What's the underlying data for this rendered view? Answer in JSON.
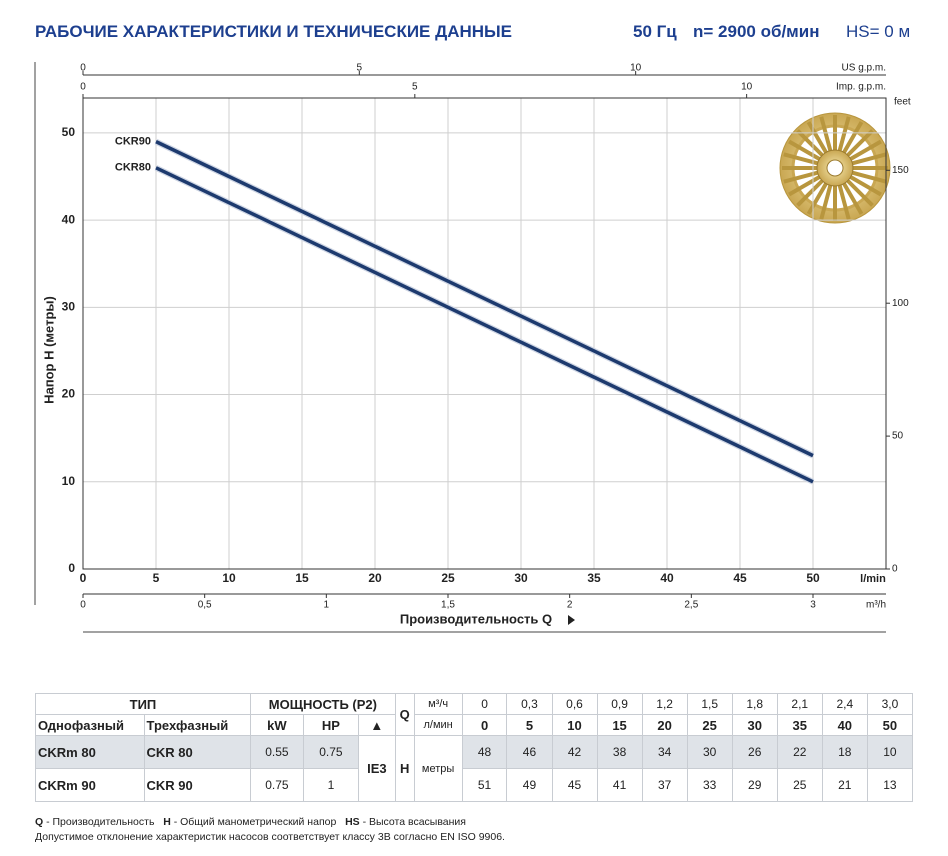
{
  "header": {
    "title": "РАБОЧИЕ ХАРАКТЕРИСТИКИ И ТЕХНИЧЕСКИЕ ДАННЫЕ",
    "frequency": "50 Гц",
    "speed": "n= 2900 об/мин",
    "suction": "HS= 0 м"
  },
  "chart_data": {
    "type": "line",
    "y_label": "Напор H (метры)",
    "x_label": "Производительность Q",
    "x_unit": "l/min",
    "x": [
      5,
      10,
      15,
      20,
      25,
      30,
      35,
      40,
      45,
      50
    ],
    "series": [
      {
        "name": "CKR90",
        "color": "#1d3a6e",
        "values": [
          49,
          45,
          41,
          37,
          33,
          29,
          25,
          21,
          17,
          13
        ]
      },
      {
        "name": "CKR80",
        "color": "#1d3a6e",
        "values": [
          46,
          42,
          38,
          34,
          30,
          26,
          22,
          18,
          14,
          10
        ]
      }
    ],
    "xlim": [
      0,
      55
    ],
    "ylim": [
      0,
      54
    ],
    "xticks": [
      0,
      5,
      10,
      15,
      20,
      25,
      30,
      35,
      40,
      45,
      50
    ],
    "yticks": [
      0,
      10,
      20,
      30,
      40,
      50
    ],
    "grid": true,
    "y2_label": "feet",
    "y2lim": [
      0,
      177.2
    ],
    "y2ticks": [
      0,
      50,
      100,
      150
    ],
    "top_axes": [
      {
        "label": "US g.p.m.",
        "lim": [
          0,
          14.53
        ],
        "ticks": [
          0,
          5,
          10
        ]
      },
      {
        "label": "Imp. g.p.m.",
        "lim": [
          0,
          12.1
        ],
        "ticks": [
          0,
          5,
          10
        ]
      }
    ],
    "bottom_axis2": {
      "label": "m³/h",
      "lim": [
        0,
        3.3
      ],
      "ticks": [
        0,
        {
          "value": 0.5,
          "label": "0,5"
        },
        1,
        {
          "value": 1.5,
          "label": "1,5"
        },
        2,
        {
          "value": 2.5,
          "label": "2,5"
        },
        3
      ]
    }
  },
  "table": {
    "type": "ТИП",
    "power": "МОЩНОСТЬ (P2)",
    "q": "Q",
    "q_unit1": "м³/ч",
    "q_m3h": [
      "0",
      "0,3",
      "0,6",
      "0,9",
      "1,2",
      "1,5",
      "1,8",
      "2,1",
      "2,4",
      "3,0"
    ],
    "single": "Однофазный",
    "three": "Трехфазный",
    "kw": "kW",
    "hp": "HP",
    "class_icon": "▲",
    "q_unit2": "л/мин",
    "q_lmin": [
      0,
      5,
      10,
      15,
      20,
      25,
      30,
      35,
      40,
      50
    ],
    "efficiency": "IE3",
    "h": "H",
    "h_unit": "метры",
    "rows": [
      {
        "single": "CKRm 80",
        "three": "CKR 80",
        "kw": "0.55",
        "hp": "0.75",
        "h": [
          48,
          46,
          42,
          38,
          34,
          30,
          26,
          22,
          18,
          10
        ]
      },
      {
        "single": "CKRm 90",
        "three": "CKR 90",
        "kw": "0.75",
        "hp": "1",
        "h": [
          51,
          49,
          45,
          41,
          37,
          33,
          29,
          25,
          21,
          13
        ]
      }
    ]
  },
  "notes": {
    "q": "Q",
    "q_text": "- Производительность",
    "h": "H",
    "h_text": "- Общий манометрический напор",
    "hs": "HS",
    "hs_text": "- Высота всасывания",
    "tolerance": "Допустимое отклонение характеристик насосов соответствует классу 3B согласно EN ISO 9906."
  }
}
